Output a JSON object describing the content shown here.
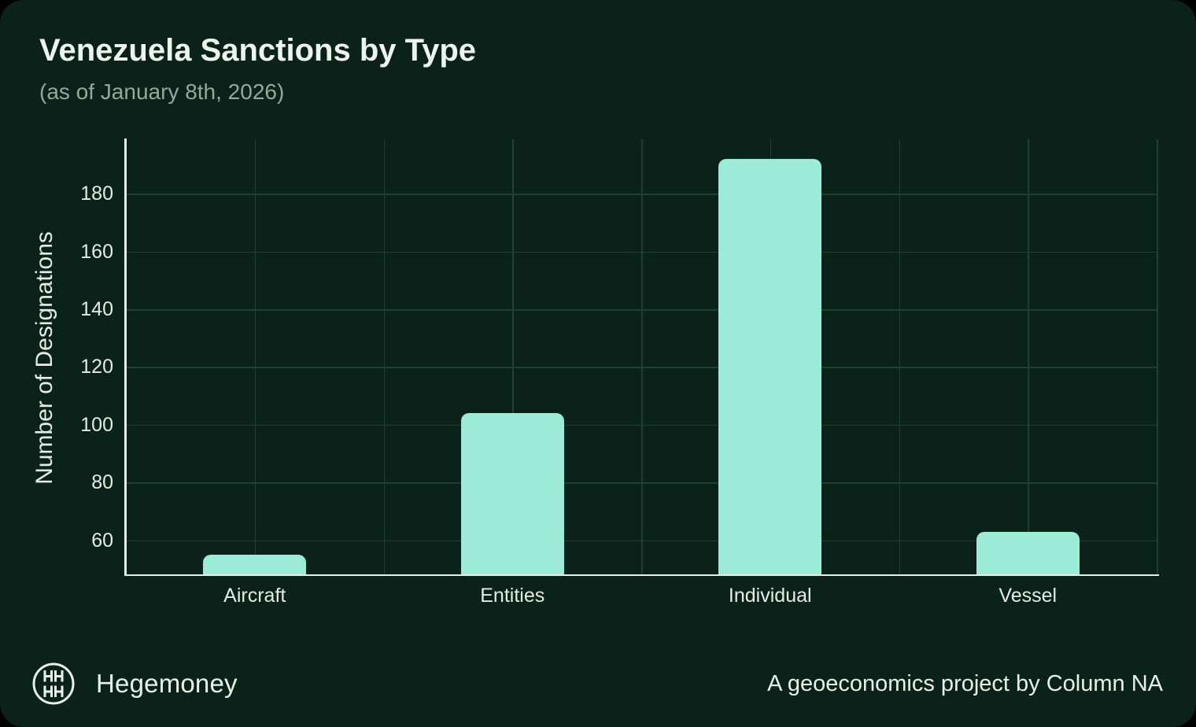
{
  "page": {
    "background": "#000000",
    "card_background": "#0a2219"
  },
  "header": {
    "title": "Venezuela Sanctions by Type",
    "subtitle": "(as of January 8th, 2026)"
  },
  "chart_data": {
    "type": "bar",
    "categories": [
      "Aircraft",
      "Entities",
      "Individual",
      "Vessel"
    ],
    "values": [
      55,
      104,
      192,
      63
    ],
    "title": "Venezuela Sanctions by Type",
    "xlabel": "",
    "ylabel": "Number of Designations",
    "yticks": [
      60,
      80,
      100,
      120,
      140,
      160,
      180
    ],
    "ylim": [
      48.15,
      198.85
    ],
    "grid": true,
    "legend": false,
    "colors": {
      "bar": "#9cebd7",
      "gridline": "#20402f",
      "axis_line": "#e7eee8",
      "tick_label": "#e4ece5",
      "title": "#edf3ee",
      "subtitle": "#96a89c"
    }
  },
  "footer": {
    "brand": "Hegemoney",
    "credit": "A geoeconomics project by Column NA",
    "logo_icon": "hegemoney-circle-grid-logo"
  }
}
